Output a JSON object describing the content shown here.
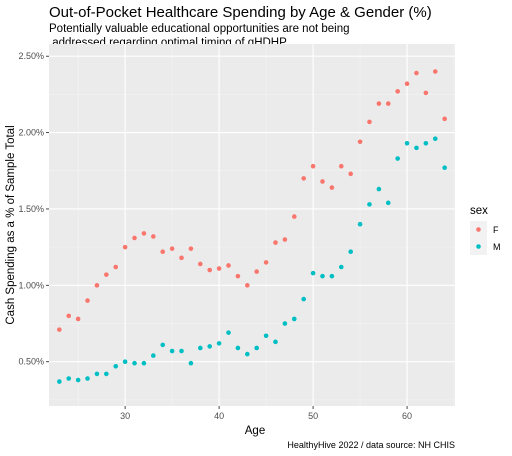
{
  "chart_data": {
    "type": "scatter",
    "title": "Out-of-Pocket Healthcare Spending by Age & Gender (%)",
    "subtitle": [
      "Potentially valuable educational opportunities are not being",
      " addressed regarding optimal timing of qHDHP"
    ],
    "xlabel": "Age",
    "ylabel": "Cash Spending as a % of Sample Total",
    "caption": "HealthyHive 2022 / data source: NH CHIS",
    "xlim": [
      21.9,
      65.1
    ],
    "ylim": [
      0.21,
      2.58
    ],
    "x_ticks": [
      30,
      40,
      50,
      60
    ],
    "x_tick_labels": [
      "30",
      "40",
      "50",
      "60"
    ],
    "y_ticks": [
      0.5,
      1.0,
      1.5,
      2.0,
      2.5
    ],
    "y_tick_labels": [
      "0.50%",
      "1.00%",
      "1.50%",
      "2.00%",
      "2.50%"
    ],
    "grid": true,
    "legend": {
      "title": "sex",
      "position": "right",
      "entries": [
        {
          "label": "F",
          "color": "#F8766D"
        },
        {
          "label": "M",
          "color": "#00BFC4"
        }
      ]
    },
    "series": [
      {
        "name": "F",
        "color": "#F8766D",
        "x": [
          23,
          24,
          25,
          26,
          27,
          28,
          29,
          30,
          31,
          32,
          33,
          34,
          35,
          36,
          37,
          38,
          39,
          40,
          41,
          42,
          43,
          44,
          45,
          46,
          47,
          48,
          49,
          50,
          51,
          52,
          53,
          54,
          55,
          56,
          57,
          58,
          59,
          60,
          61,
          62,
          63,
          64
        ],
        "y": [
          0.71,
          0.8,
          0.78,
          0.9,
          1.0,
          1.07,
          1.12,
          1.25,
          1.31,
          1.34,
          1.32,
          1.22,
          1.24,
          1.18,
          1.24,
          1.14,
          1.1,
          1.11,
          1.13,
          1.06,
          1.0,
          1.09,
          1.15,
          1.28,
          1.3,
          1.45,
          1.7,
          1.78,
          1.68,
          1.64,
          1.78,
          1.73,
          1.94,
          2.07,
          2.19,
          2.19,
          2.27,
          2.32,
          2.39,
          2.26,
          2.4,
          2.09
        ]
      },
      {
        "name": "M",
        "color": "#00BFC4",
        "x": [
          23,
          24,
          25,
          26,
          27,
          28,
          29,
          30,
          31,
          32,
          33,
          34,
          35,
          36,
          37,
          38,
          39,
          40,
          41,
          42,
          43,
          44,
          45,
          46,
          47,
          48,
          49,
          50,
          51,
          52,
          53,
          54,
          55,
          56,
          57,
          58,
          59,
          60,
          61,
          62,
          63,
          64
        ],
        "y": [
          0.37,
          0.39,
          0.38,
          0.39,
          0.42,
          0.42,
          0.47,
          0.5,
          0.49,
          0.49,
          0.54,
          0.61,
          0.57,
          0.57,
          0.49,
          0.59,
          0.6,
          0.62,
          0.69,
          0.59,
          0.55,
          0.59,
          0.67,
          0.63,
          0.75,
          0.78,
          0.91,
          1.08,
          1.06,
          1.06,
          1.12,
          1.22,
          1.4,
          1.53,
          1.63,
          1.54,
          1.83,
          1.93,
          1.9,
          1.93,
          1.96,
          1.77
        ]
      }
    ]
  },
  "colors": {
    "panel_background": "#EBEBEB",
    "grid_major": "#FFFFFF",
    "grid_minor": "#F5F5F5",
    "tick_text": "#4D4D4D"
  }
}
